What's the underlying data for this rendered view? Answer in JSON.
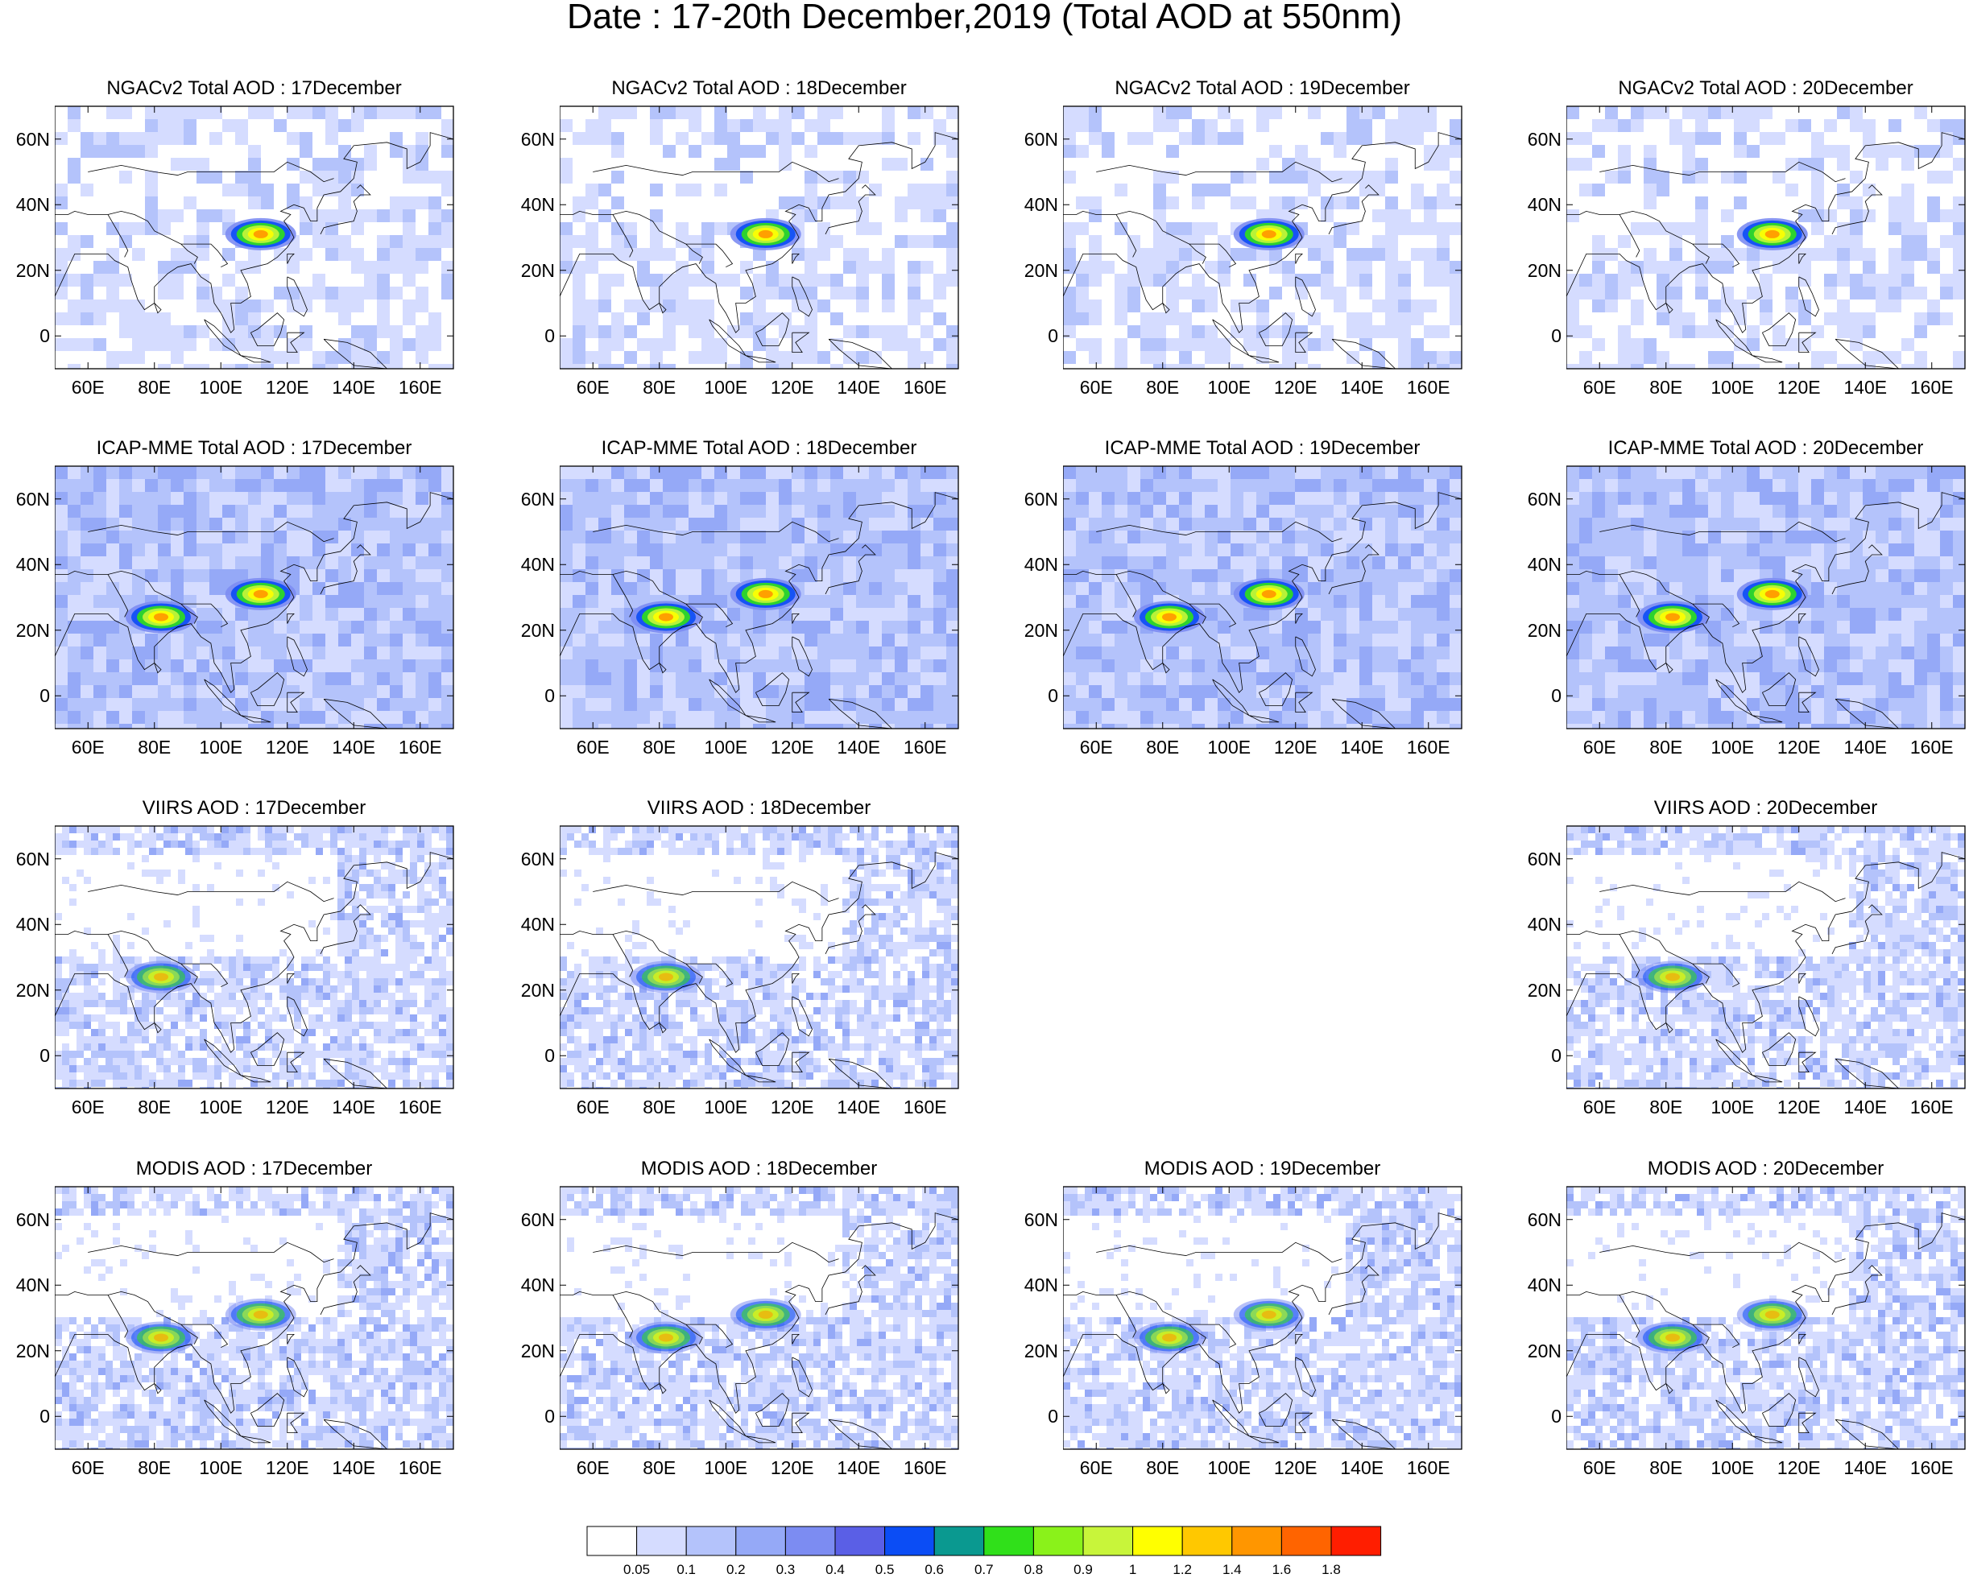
{
  "title": "Date : 17-20th December,2019 (Total AOD at 550nm)",
  "lat_labels": [
    "60N",
    "40N",
    "20N",
    "0"
  ],
  "lon_labels": [
    "60E",
    "80E",
    "100E",
    "120E",
    "140E",
    "160E"
  ],
  "rows": [
    {
      "model": "NGACv2",
      "panels": [
        {
          "title": "NGACv2 Total AOD : 17December",
          "present": true
        },
        {
          "title": "NGACv2 Total AOD : 18December",
          "present": true
        },
        {
          "title": "NGACv2 Total AOD : 19December",
          "present": true
        },
        {
          "title": "NGACv2 Total AOD : 20December",
          "present": true
        }
      ]
    },
    {
      "model": "ICAP-MME",
      "panels": [
        {
          "title": "ICAP-MME Total AOD : 17December",
          "present": true
        },
        {
          "title": "ICAP-MME Total AOD : 18December",
          "present": true
        },
        {
          "title": "ICAP-MME Total AOD : 19December",
          "present": true
        },
        {
          "title": "ICAP-MME Total AOD : 20December",
          "present": true
        }
      ]
    },
    {
      "model": "VIIRS",
      "panels": [
        {
          "title": "VIIRS AOD : 17December",
          "present": true
        },
        {
          "title": "VIIRS AOD : 18December",
          "present": true
        },
        {
          "title": "",
          "present": false
        },
        {
          "title": "VIIRS AOD : 20December",
          "present": true
        }
      ]
    },
    {
      "model": "MODIS",
      "panels": [
        {
          "title": "MODIS AOD : 17December",
          "present": true
        },
        {
          "title": "MODIS AOD : 18December",
          "present": true
        },
        {
          "title": "MODIS AOD : 19December",
          "present": true
        },
        {
          "title": "MODIS AOD : 20December",
          "present": true
        }
      ]
    }
  ],
  "colorbar": {
    "labels": [
      "0.05",
      "0.1",
      "0.2",
      "0.3",
      "0.4",
      "0.5",
      "0.6",
      "0.7",
      "0.8",
      "0.9",
      "1",
      "1.2",
      "1.4",
      "1.6",
      "1.8"
    ],
    "colors": [
      "#ffffff",
      "#d5dcff",
      "#b4c3fb",
      "#95a9f7",
      "#7c8cf2",
      "#5a5fe6",
      "#0b4df5",
      "#0a9990",
      "#30e01a",
      "#8af21a",
      "#c8f53a",
      "#ffff00",
      "#ffc800",
      "#ff9600",
      "#ff6400",
      "#ff1e00"
    ]
  }
}
